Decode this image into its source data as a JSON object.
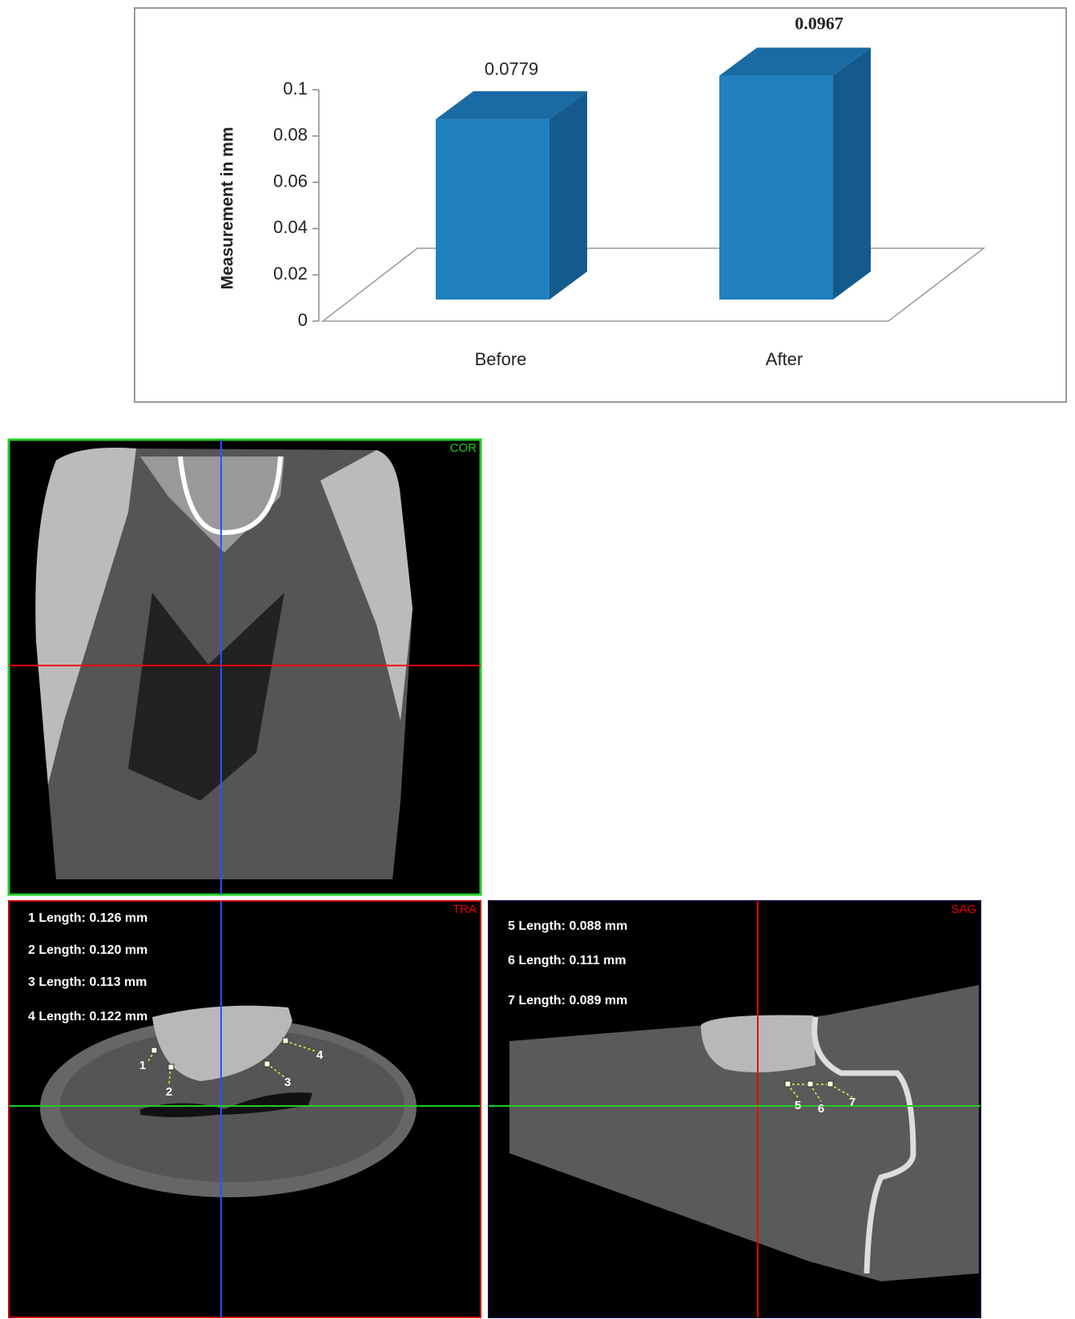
{
  "chart_data": {
    "type": "bar3d",
    "y_label": "Measurement in mm",
    "categories": [
      "Before",
      "After"
    ],
    "values": [
      0.0779,
      0.0967
    ],
    "color": "#2080c0",
    "ylim": [
      0,
      0.1
    ],
    "yticks": [
      0,
      0.02,
      0.04,
      0.06,
      0.08,
      0.1
    ]
  },
  "panels": {
    "coronal": {
      "label": "COR"
    },
    "transverse": {
      "label": "TRA",
      "measurements": [
        "1  Length: 0.126 mm",
        "2  Length: 0.120 mm",
        "3  Length: 0.113 mm",
        "4  Length: 0.122 mm"
      ],
      "points": [
        "1",
        "2",
        "3",
        "4"
      ]
    },
    "sagittal": {
      "label": "SAG",
      "measurements": [
        "5  Length: 0.088 mm",
        "6  Length: 0.111 mm",
        "7  Length: 0.089 mm"
      ],
      "points": [
        "5",
        "6",
        "7"
      ]
    }
  }
}
